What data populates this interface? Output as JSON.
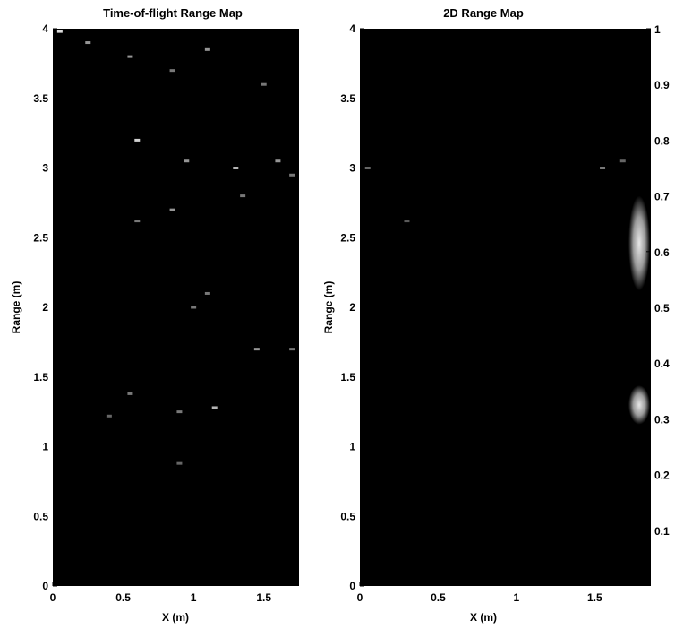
{
  "chart_data": [
    {
      "type": "heatmap",
      "title": "Time-of-flight Range Map",
      "xlabel": "X (m)",
      "ylabel": "Range (m)",
      "xlim": [
        0,
        1.75
      ],
      "ylim": [
        0,
        4
      ],
      "xticks": [
        "0",
        "0.5",
        "1",
        "1.5"
      ],
      "xtick_values": [
        0,
        0.5,
        1,
        1.5
      ],
      "yticks": [
        "0",
        "0.5",
        "1",
        "1.5",
        "2",
        "2.5",
        "3",
        "3.5",
        "4"
      ],
      "ytick_values": [
        0,
        0.5,
        1,
        1.5,
        2,
        2.5,
        3,
        3.5,
        4
      ],
      "background_value": 0,
      "bright_points": [
        {
          "x": 0.05,
          "y": 3.98,
          "value": 0.35
        },
        {
          "x": 0.25,
          "y": 3.9,
          "value": 0.2
        },
        {
          "x": 0.55,
          "y": 3.8,
          "value": 0.2
        },
        {
          "x": 0.85,
          "y": 3.7,
          "value": 0.15
        },
        {
          "x": 1.1,
          "y": 3.85,
          "value": 0.2
        },
        {
          "x": 1.5,
          "y": 3.6,
          "value": 0.15
        },
        {
          "x": 0.6,
          "y": 3.2,
          "value": 0.3
        },
        {
          "x": 0.95,
          "y": 3.05,
          "value": 0.2
        },
        {
          "x": 1.3,
          "y": 3.0,
          "value": 0.25
        },
        {
          "x": 1.6,
          "y": 3.05,
          "value": 0.2
        },
        {
          "x": 1.7,
          "y": 2.95,
          "value": 0.15
        },
        {
          "x": 0.85,
          "y": 2.7,
          "value": 0.2
        },
        {
          "x": 0.6,
          "y": 2.62,
          "value": 0.15
        },
        {
          "x": 1.35,
          "y": 2.8,
          "value": 0.15
        },
        {
          "x": 1.1,
          "y": 2.1,
          "value": 0.15
        },
        {
          "x": 1.0,
          "y": 2.0,
          "value": 0.15
        },
        {
          "x": 1.45,
          "y": 1.7,
          "value": 0.2
        },
        {
          "x": 1.7,
          "y": 1.7,
          "value": 0.15
        },
        {
          "x": 1.15,
          "y": 1.28,
          "value": 0.25
        },
        {
          "x": 0.55,
          "y": 1.38,
          "value": 0.15
        },
        {
          "x": 0.9,
          "y": 1.25,
          "value": 0.15
        },
        {
          "x": 0.4,
          "y": 1.22,
          "value": 0.12
        },
        {
          "x": 0.9,
          "y": 0.88,
          "value": 0.12
        }
      ]
    },
    {
      "type": "heatmap",
      "title": "2D Range Map",
      "xlabel": "X (m)",
      "ylabel": "Range (m)",
      "xlim": [
        0,
        1.75
      ],
      "ylim": [
        0,
        4
      ],
      "xticks": [
        "0",
        "0.5",
        "1",
        "1.5"
      ],
      "xtick_values": [
        0,
        0.5,
        1,
        1.5
      ],
      "yticks": [
        "0",
        "0.5",
        "1",
        "1.5",
        "2",
        "2.5",
        "3",
        "3.5",
        "4"
      ],
      "yticks_values": [
        0,
        0.5,
        1,
        1.5,
        2,
        2.5,
        3,
        3.5,
        4
      ],
      "background_value": 0,
      "bright_points": [
        {
          "x": 0.05,
          "y": 3.0,
          "value": 0.12
        },
        {
          "x": 0.3,
          "y": 2.62,
          "value": 0.1
        },
        {
          "x": 1.55,
          "y": 3.0,
          "value": 0.15
        },
        {
          "x": 1.68,
          "y": 3.05,
          "value": 0.12
        }
      ]
    }
  ],
  "colorbar": {
    "ticks": [
      "0.1",
      "0.2",
      "0.3",
      "0.4",
      "0.5",
      "0.6",
      "0.7",
      "0.8",
      "0.9",
      "1"
    ],
    "tick_values": [
      0.1,
      0.2,
      0.3,
      0.4,
      0.5,
      0.6,
      0.7,
      0.8,
      0.9,
      1
    ],
    "range": [
      0,
      1
    ],
    "light_bands": [
      [
        0.29,
        0.36
      ],
      [
        0.53,
        0.7
      ]
    ]
  }
}
